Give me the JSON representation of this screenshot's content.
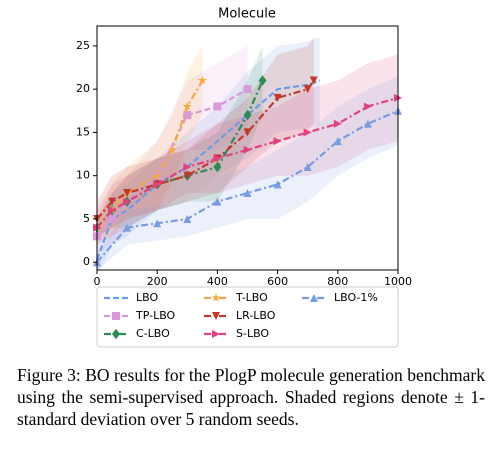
{
  "chart_data": {
    "type": "line",
    "title": "Molecule",
    "xlim": [
      0,
      1000
    ],
    "xticks": [
      0,
      200,
      400,
      600,
      800,
      1000
    ],
    "ylim": [
      -0.9,
      27.3
    ],
    "yticks": [
      0,
      5,
      10,
      15,
      20,
      25
    ],
    "legend_rows": 3,
    "series": [
      {
        "name": "LBO",
        "color": "#6c9be8",
        "linestyle": "dashed",
        "marker": "none",
        "x": [
          0,
          50,
          100,
          200,
          300,
          400,
          500,
          600,
          700,
          740
        ],
        "values": [
          0.3,
          5,
          6,
          9,
          11,
          14,
          17,
          20,
          20.5,
          21
        ],
        "std": [
          2,
          3,
          3,
          3,
          4,
          4,
          5,
          5,
          5,
          5
        ]
      },
      {
        "name": "TP-LBO",
        "color": "#d99ad9",
        "linestyle": "dashed",
        "marker": "square",
        "x": [
          0,
          50,
          100,
          200,
          300,
          400,
          500
        ],
        "values": [
          3,
          5,
          7,
          10,
          17,
          18,
          20
        ],
        "std": [
          2,
          3,
          3,
          4,
          4,
          5,
          5
        ]
      },
      {
        "name": "C-LBO",
        "color": "#2e8b57",
        "linestyle": "dashdot",
        "marker": "diamond",
        "x": [
          0,
          50,
          100,
          200,
          300,
          400,
          500,
          550
        ],
        "values": [
          4,
          6,
          7,
          9,
          10,
          11,
          17,
          21
        ],
        "std": [
          1,
          2,
          3,
          3,
          3,
          4,
          4,
          4
        ]
      },
      {
        "name": "T-LBO",
        "color": "#f5a742",
        "linestyle": "dashdot",
        "marker": "star",
        "x": [
          0,
          50,
          100,
          200,
          250,
          300,
          350
        ],
        "values": [
          4,
          6,
          8,
          10,
          13,
          18,
          21
        ],
        "std": [
          1,
          3,
          3,
          4,
          4,
          4,
          4
        ]
      },
      {
        "name": "LR-LBO",
        "color": "#c0392b",
        "linestyle": "dashdot",
        "marker": "triangle-down",
        "x": [
          0,
          50,
          100,
          200,
          300,
          400,
          500,
          600,
          700,
          720
        ],
        "values": [
          5,
          7,
          8,
          9,
          10,
          12,
          15,
          19,
          20,
          21
        ],
        "std": [
          2,
          3,
          3,
          3,
          3,
          4,
          4,
          5,
          5,
          5
        ]
      },
      {
        "name": "S-LBO",
        "color": "#e0417f",
        "linestyle": "dashdot",
        "marker": "triangle-right",
        "x": [
          0,
          50,
          100,
          200,
          300,
          400,
          500,
          600,
          700,
          800,
          900,
          1000
        ],
        "values": [
          4,
          6,
          7,
          9,
          11,
          12,
          13,
          14,
          15,
          16,
          18,
          19
        ],
        "std": [
          2,
          3,
          3,
          3,
          3,
          4,
          4,
          4,
          5,
          5,
          5,
          5
        ]
      },
      {
        "name": "LBO-1%",
        "color": "#7b9be0",
        "linestyle": "dashdot",
        "marker": "triangle-up",
        "x": [
          0,
          100,
          200,
          300,
          400,
          500,
          600,
          700,
          800,
          900,
          1000
        ],
        "values": [
          0,
          4,
          4.5,
          5,
          7,
          8,
          9,
          11,
          14,
          16,
          17.5
        ],
        "std": [
          1,
          2,
          2,
          2,
          3,
          3,
          4,
          4,
          4,
          4,
          4
        ]
      }
    ]
  },
  "caption": "Figure 3: BO results for the PlogP molecule generation benchmark using the semi-supervised approach. Shaded regions denote ± 1-standard deviation over 5 random seeds."
}
